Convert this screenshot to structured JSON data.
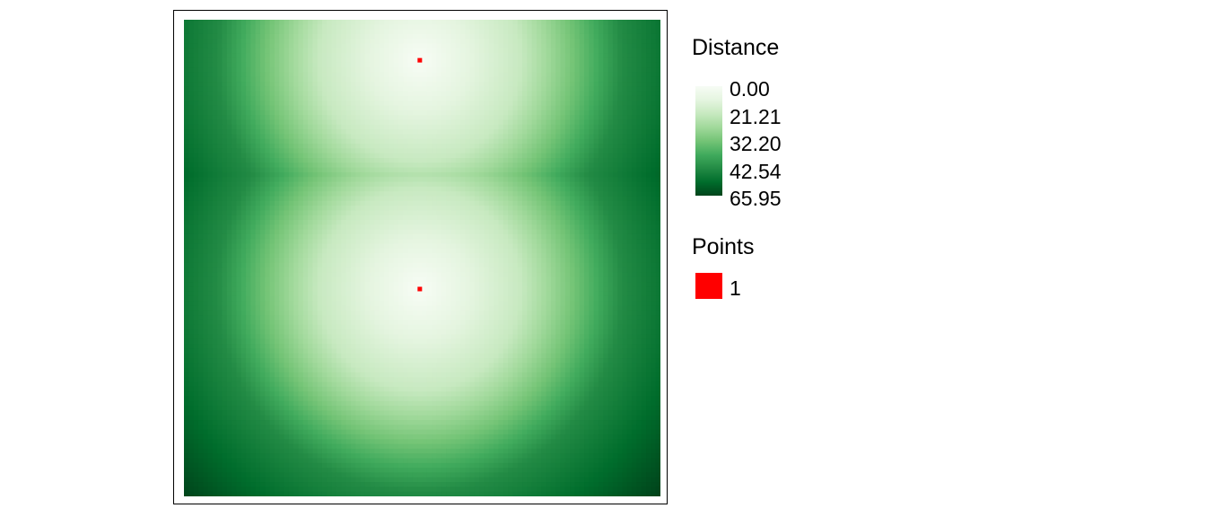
{
  "chart_data": {
    "type": "heatmap",
    "title": "",
    "xlabel": "",
    "ylabel": "",
    "grid": false,
    "color_scale": {
      "name": "Greens",
      "low_color": "#f7fcf5",
      "high_color": "#00441b",
      "stops": [
        "#f7fcf5",
        "#e5f5e0",
        "#c7e9c0",
        "#a1d99b",
        "#74c476",
        "#41ab5d",
        "#238b45",
        "#006d2c",
        "#00441b"
      ]
    },
    "raster_grid": {
      "ncol": 100,
      "nrow": 100
    },
    "points": [
      {
        "col": 49.5,
        "row": 8.5,
        "value": 1
      },
      {
        "col": 49.5,
        "row": 56.5,
        "value": 1
      }
    ],
    "point_color": "#ff0000",
    "legend": {
      "position": "right",
      "distance": {
        "title": "Distance",
        "breaks": [
          0.0,
          21.21,
          32.2,
          42.54,
          65.95
        ],
        "labels": [
          "0.00",
          "21.21",
          "32.20",
          "42.54",
          "65.95"
        ]
      },
      "points": {
        "title": "Points",
        "labels": [
          "1"
        ]
      }
    }
  }
}
